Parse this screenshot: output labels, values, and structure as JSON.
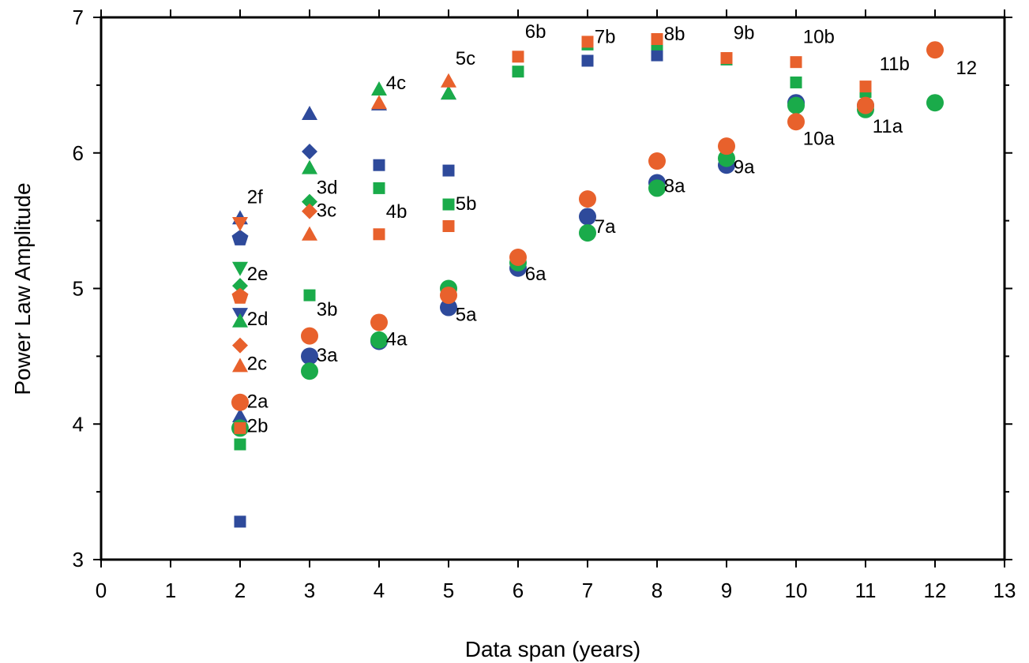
{
  "chart_data": {
    "type": "scatter",
    "title": "",
    "xlabel": "Data span (years)",
    "ylabel": "Power Law Amplitude",
    "xlim": [
      0,
      13
    ],
    "ylim": [
      3,
      7
    ],
    "xticks": [
      0,
      1,
      2,
      3,
      4,
      5,
      6,
      7,
      8,
      9,
      10,
      11,
      12,
      13
    ],
    "yticks": [
      3,
      4,
      5,
      6,
      7
    ],
    "grid": false,
    "legend": "none",
    "colors": {
      "blue": "#2e4a9b",
      "green": "#1aab4a",
      "orange": "#e8612c"
    },
    "series": [
      {
        "color": "blue",
        "points": [
          {
            "x": 2,
            "y": 5.52,
            "m": "triangle"
          },
          {
            "x": 2,
            "y": 5.37,
            "m": "pentagon"
          },
          {
            "x": 2,
            "y": 4.81,
            "m": "triangle-down"
          },
          {
            "x": 2,
            "y": 4.06,
            "m": "triangle"
          },
          {
            "x": 2,
            "y": 3.28,
            "m": "square"
          },
          {
            "x": 3,
            "y": 6.29,
            "m": "triangle"
          },
          {
            "x": 3,
            "y": 6.01,
            "m": "diamond"
          },
          {
            "x": 3,
            "y": 4.5,
            "m": "circle"
          },
          {
            "x": 4,
            "y": 6.36,
            "m": "triangle"
          },
          {
            "x": 4,
            "y": 5.91,
            "m": "square"
          },
          {
            "x": 4,
            "y": 4.61,
            "m": "circle"
          },
          {
            "x": 5,
            "y": 6.44,
            "m": "triangle"
          },
          {
            "x": 5,
            "y": 5.87,
            "m": "square"
          },
          {
            "x": 5,
            "y": 4.86,
            "m": "circle"
          },
          {
            "x": 6,
            "y": 5.15,
            "m": "circle"
          },
          {
            "x": 7,
            "y": 6.68,
            "m": "square"
          },
          {
            "x": 7,
            "y": 5.53,
            "m": "circle"
          },
          {
            "x": 8,
            "y": 6.72,
            "m": "square"
          },
          {
            "x": 8,
            "y": 5.78,
            "m": "circle"
          },
          {
            "x": 9,
            "y": 6.69,
            "m": "square"
          },
          {
            "x": 9,
            "y": 5.91,
            "m": "circle"
          },
          {
            "x": 10,
            "y": 6.37,
            "m": "circle"
          },
          {
            "x": 11,
            "y": 6.35,
            "m": "circle"
          }
        ]
      },
      {
        "color": "green",
        "points": [
          {
            "x": 2,
            "y": 5.15,
            "m": "triangle-down"
          },
          {
            "x": 2,
            "y": 5.02,
            "m": "diamond"
          },
          {
            "x": 2,
            "y": 4.76,
            "m": "triangle"
          },
          {
            "x": 2,
            "y": 3.97,
            "m": "circle"
          },
          {
            "x": 2,
            "y": 3.85,
            "m": "square"
          },
          {
            "x": 3,
            "y": 5.89,
            "m": "triangle"
          },
          {
            "x": 3,
            "y": 5.64,
            "m": "diamond"
          },
          {
            "x": 3,
            "y": 4.95,
            "m": "square"
          },
          {
            "x": 3,
            "y": 4.39,
            "m": "circle"
          },
          {
            "x": 4,
            "y": 6.47,
            "m": "triangle"
          },
          {
            "x": 4,
            "y": 5.74,
            "m": "square"
          },
          {
            "x": 4,
            "y": 4.62,
            "m": "circle"
          },
          {
            "x": 5,
            "y": 6.44,
            "m": "triangle"
          },
          {
            "x": 5,
            "y": 5.62,
            "m": "square"
          },
          {
            "x": 5,
            "y": 5.0,
            "m": "circle"
          },
          {
            "x": 6,
            "y": 6.6,
            "m": "square"
          },
          {
            "x": 6,
            "y": 5.19,
            "m": "circle"
          },
          {
            "x": 7,
            "y": 6.8,
            "m": "square"
          },
          {
            "x": 7,
            "y": 5.41,
            "m": "circle"
          },
          {
            "x": 8,
            "y": 6.8,
            "m": "square"
          },
          {
            "x": 8,
            "y": 5.74,
            "m": "circle"
          },
          {
            "x": 9,
            "y": 6.69,
            "m": "square"
          },
          {
            "x": 9,
            "y": 5.96,
            "m": "circle"
          },
          {
            "x": 10,
            "y": 6.52,
            "m": "square"
          },
          {
            "x": 10,
            "y": 6.35,
            "m": "circle"
          },
          {
            "x": 11,
            "y": 6.45,
            "m": "square"
          },
          {
            "x": 11,
            "y": 6.32,
            "m": "circle"
          },
          {
            "x": 12,
            "y": 6.37,
            "m": "circle"
          }
        ]
      },
      {
        "color": "orange",
        "points": [
          {
            "x": 2,
            "y": 5.48,
            "m": "triangle-down"
          },
          {
            "x": 2,
            "y": 4.94,
            "m": "pentagon"
          },
          {
            "x": 2,
            "y": 4.58,
            "m": "diamond"
          },
          {
            "x": 2,
            "y": 4.43,
            "m": "triangle"
          },
          {
            "x": 2,
            "y": 4.16,
            "m": "circle"
          },
          {
            "x": 2,
            "y": 3.97,
            "m": "square"
          },
          {
            "x": 3,
            "y": 5.57,
            "m": "diamond"
          },
          {
            "x": 3,
            "y": 5.4,
            "m": "triangle"
          },
          {
            "x": 3,
            "y": 4.65,
            "m": "circle"
          },
          {
            "x": 4,
            "y": 6.37,
            "m": "triangle"
          },
          {
            "x": 4,
            "y": 5.4,
            "m": "square"
          },
          {
            "x": 4,
            "y": 4.75,
            "m": "circle"
          },
          {
            "x": 5,
            "y": 6.53,
            "m": "triangle"
          },
          {
            "x": 5,
            "y": 5.46,
            "m": "square"
          },
          {
            "x": 5,
            "y": 4.95,
            "m": "circle"
          },
          {
            "x": 6,
            "y": 6.71,
            "m": "square"
          },
          {
            "x": 6,
            "y": 5.23,
            "m": "circle"
          },
          {
            "x": 7,
            "y": 6.82,
            "m": "square"
          },
          {
            "x": 7,
            "y": 5.66,
            "m": "circle"
          },
          {
            "x": 8,
            "y": 6.84,
            "m": "square"
          },
          {
            "x": 8,
            "y": 5.94,
            "m": "circle"
          },
          {
            "x": 9,
            "y": 6.7,
            "m": "square"
          },
          {
            "x": 9,
            "y": 6.05,
            "m": "circle"
          },
          {
            "x": 10,
            "y": 6.67,
            "m": "square"
          },
          {
            "x": 10,
            "y": 6.23,
            "m": "circle"
          },
          {
            "x": 11,
            "y": 6.49,
            "m": "square"
          },
          {
            "x": 11,
            "y": 6.35,
            "m": "circle"
          },
          {
            "x": 12,
            "y": 6.76,
            "m": "circle"
          }
        ]
      }
    ],
    "annotations": [
      {
        "text": "2f",
        "x": 2.1,
        "y": 5.63
      },
      {
        "text": "2e",
        "x": 2.1,
        "y": 5.06
      },
      {
        "text": "2d",
        "x": 2.1,
        "y": 4.73
      },
      {
        "text": "2c",
        "x": 2.1,
        "y": 4.4
      },
      {
        "text": "2a",
        "x": 2.1,
        "y": 4.12
      },
      {
        "text": "2b",
        "x": 2.1,
        "y": 3.94
      },
      {
        "text": "3d",
        "x": 3.1,
        "y": 5.7
      },
      {
        "text": "3c",
        "x": 3.1,
        "y": 5.53
      },
      {
        "text": "3b",
        "x": 3.1,
        "y": 4.8
      },
      {
        "text": "3a",
        "x": 3.1,
        "y": 4.46
      },
      {
        "text": "4c",
        "x": 4.1,
        "y": 6.47
      },
      {
        "text": "4b",
        "x": 4.1,
        "y": 5.52
      },
      {
        "text": "4a",
        "x": 4.1,
        "y": 4.58
      },
      {
        "text": "5c",
        "x": 5.1,
        "y": 6.65
      },
      {
        "text": "5b",
        "x": 5.1,
        "y": 5.58
      },
      {
        "text": "5a",
        "x": 5.1,
        "y": 4.76
      },
      {
        "text": "6b",
        "x": 6.1,
        "y": 6.85
      },
      {
        "text": "6a",
        "x": 6.1,
        "y": 5.06
      },
      {
        "text": "7b",
        "x": 7.1,
        "y": 6.81
      },
      {
        "text": "7a",
        "x": 7.1,
        "y": 5.41
      },
      {
        "text": "8b",
        "x": 8.1,
        "y": 6.83
      },
      {
        "text": "8a",
        "x": 8.1,
        "y": 5.71
      },
      {
        "text": "9b",
        "x": 9.1,
        "y": 6.84
      },
      {
        "text": "9a",
        "x": 9.1,
        "y": 5.85
      },
      {
        "text": "10b",
        "x": 10.1,
        "y": 6.81
      },
      {
        "text": "10a",
        "x": 10.1,
        "y": 6.06
      },
      {
        "text": "11b",
        "x": 11.2,
        "y": 6.61
      },
      {
        "text": "11a",
        "x": 11.1,
        "y": 6.15
      },
      {
        "text": "12",
        "x": 12.3,
        "y": 6.58
      }
    ]
  }
}
